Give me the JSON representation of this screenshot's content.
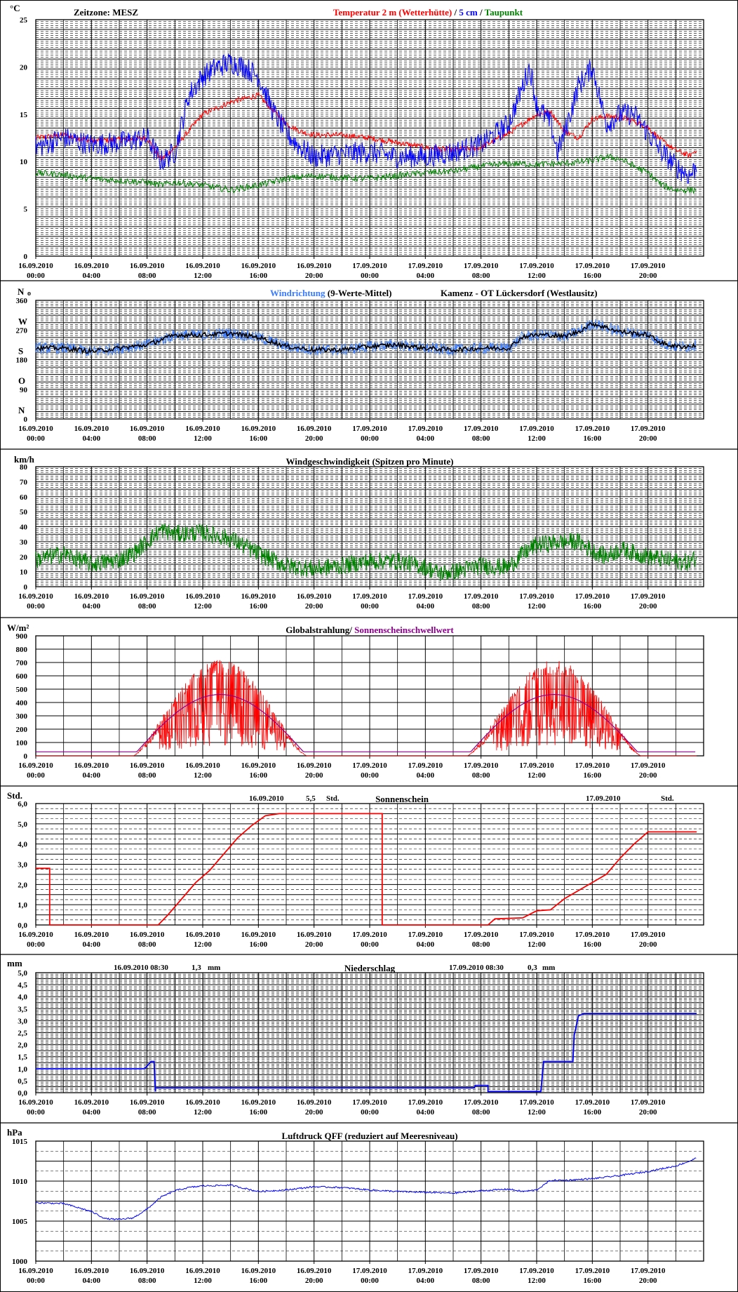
{
  "colors": {
    "red": "#ff0000",
    "blue": "#0000ff",
    "green": "#008000",
    "lightblue": "#3a7bff",
    "purple": "#8b008b",
    "black": "#000000"
  },
  "time_axis": {
    "dates": [
      "16.09.2010",
      "16.09.2010",
      "16.09.2010",
      "16.09.2010",
      "16.09.2010",
      "16.09.2010",
      "17.09.2010",
      "17.09.2010",
      "17.09.2010",
      "17.09.2010",
      "17.09.2010",
      "17.09.2010"
    ],
    "times": [
      "00:00",
      "04:00",
      "08:00",
      "12:00",
      "16:00",
      "20:00",
      "00:00",
      "04:00",
      "08:00",
      "12:00",
      "16:00",
      "20:00"
    ],
    "range_hours": [
      0,
      48
    ]
  },
  "chart_data": [
    {
      "id": "temp",
      "type": "line",
      "title_parts": [
        "Temperatur 2 m (Wetterhütte)",
        "  /  ",
        "5 cm",
        " / ",
        "Taupunkt"
      ],
      "title_colors": [
        "red",
        "black",
        "blue",
        "black",
        "green"
      ],
      "top_left_label": "Zeitzone: MESZ",
      "unit": "°C",
      "ylim": [
        0,
        25
      ],
      "yticks": [
        "0",
        "5",
        "10",
        "15",
        "20",
        "25"
      ],
      "series": [
        {
          "name": "Temperatur 2 m (Wetterhütte)",
          "color": "red",
          "noise": 0.3,
          "x": [
            0,
            2,
            4,
            6,
            8,
            9,
            10,
            12,
            14,
            16,
            17,
            18,
            19,
            20,
            22,
            24,
            26,
            28,
            30,
            32,
            34,
            36,
            37,
            38,
            39,
            40,
            41,
            42,
            43,
            44,
            45,
            46,
            47,
            47.5
          ],
          "y": [
            12.5,
            12.8,
            12.2,
            12.3,
            12.5,
            10.2,
            11.5,
            15,
            16.3,
            17,
            15.5,
            14,
            13.2,
            12.8,
            12.8,
            12.5,
            12,
            11.5,
            11.2,
            11.5,
            13,
            15,
            15.3,
            13.2,
            12.5,
            14.5,
            14.8,
            14.7,
            14.3,
            13.6,
            12.2,
            11.2,
            10.6,
            11.3
          ]
        },
        {
          "name": "5 cm",
          "color": "blue",
          "noise": 1.2,
          "x": [
            0,
            2,
            4,
            6,
            8,
            9,
            10,
            11,
            12,
            13,
            14,
            15,
            16,
            17,
            18,
            19,
            20,
            22,
            24,
            26,
            28,
            30,
            32,
            34,
            35,
            35.5,
            36,
            37,
            37.5,
            38,
            39,
            40,
            41,
            42,
            43,
            44,
            45,
            46,
            47,
            47.5
          ],
          "y": [
            11.5,
            12.5,
            11.8,
            12,
            12.5,
            10,
            11,
            17,
            19,
            20,
            20.5,
            20,
            19,
            15.5,
            13,
            11.5,
            10.5,
            10.8,
            11,
            10.5,
            10.5,
            11,
            11.8,
            14,
            18,
            20,
            16,
            14,
            11,
            13,
            18,
            20,
            14,
            15,
            15,
            13,
            11,
            9.5,
            8.5,
            9.5
          ]
        },
        {
          "name": "Taupunkt",
          "color": "green",
          "noise": 0.35,
          "x": [
            0,
            2,
            4,
            6,
            8,
            9,
            10,
            12,
            14,
            16,
            18,
            20,
            22,
            24,
            26,
            28,
            30,
            32,
            34,
            36,
            38,
            40,
            41,
            42,
            43,
            44,
            45,
            46,
            47,
            47.5
          ],
          "y": [
            8.8,
            8.6,
            8.2,
            8,
            7.8,
            7.5,
            7.8,
            7.5,
            7,
            7.5,
            8.2,
            8.5,
            8.3,
            8.2,
            8.5,
            8.8,
            9,
            9.5,
            9.8,
            9.7,
            9.8,
            10.1,
            10.5,
            10.3,
            9.5,
            8.8,
            7.5,
            7,
            7,
            7
          ]
        }
      ]
    },
    {
      "id": "winddir",
      "type": "line",
      "title_parts": [
        "Windrichtung",
        " (9-Werte-Mittel)"
      ],
      "title_colors": [
        "lightblue",
        "black"
      ],
      "subtitle": "Kamenz - OT Lückersdorf (Westlausitz)",
      "left_label": "N",
      "ylim": [
        0,
        360
      ],
      "yticks": [
        "0",
        "90",
        "180",
        "270",
        "360"
      ],
      "compass": [
        "N",
        "O",
        "S",
        "W",
        "N"
      ],
      "series": [
        {
          "name": "Windrichtung",
          "color": "lightblue",
          "noise": 18,
          "x": [
            0,
            2,
            4,
            6,
            8,
            10,
            12,
            14,
            16,
            18,
            20,
            22,
            24,
            26,
            28,
            30,
            32,
            34,
            35,
            36,
            37,
            38,
            39,
            40,
            42,
            44,
            45,
            46,
            47,
            47.5
          ],
          "y": [
            215,
            215,
            205,
            215,
            225,
            255,
            255,
            260,
            248,
            220,
            210,
            210,
            220,
            225,
            215,
            210,
            215,
            215,
            250,
            255,
            255,
            250,
            265,
            290,
            265,
            255,
            230,
            220,
            220,
            225
          ]
        },
        {
          "name": "9-Werte-Mittel",
          "color": "black",
          "noise": 7,
          "x": [
            0,
            2,
            4,
            6,
            8,
            10,
            12,
            14,
            16,
            18,
            20,
            22,
            24,
            26,
            28,
            30,
            32,
            34,
            35,
            36,
            37,
            38,
            39,
            40,
            42,
            44,
            45,
            46,
            47,
            47.5
          ],
          "y": [
            215,
            215,
            205,
            215,
            225,
            255,
            255,
            260,
            248,
            220,
            210,
            210,
            220,
            225,
            215,
            210,
            215,
            215,
            250,
            255,
            255,
            250,
            265,
            290,
            265,
            255,
            230,
            220,
            220,
            225
          ]
        }
      ]
    },
    {
      "id": "windspeed",
      "type": "line",
      "title_parts": [
        "Windgeschwindigkeit (Spitzen pro Minute)"
      ],
      "title_colors": [
        "black"
      ],
      "unit": "km/h",
      "ylim": [
        0,
        80
      ],
      "yticks": [
        "0",
        "10",
        "20",
        "30",
        "40",
        "50",
        "60",
        "70",
        "80"
      ],
      "series": [
        {
          "name": "Windgeschwindigkeit",
          "color": "green",
          "noise": 6,
          "x": [
            0,
            2,
            4,
            6,
            7,
            8,
            9,
            10,
            12,
            14,
            16,
            18,
            20,
            22,
            24,
            26,
            28,
            29,
            30,
            32,
            34,
            35,
            36,
            38,
            39,
            40,
            41,
            42,
            44,
            46,
            47,
            47.5
          ],
          "y": [
            18,
            22,
            15,
            18,
            22,
            30,
            38,
            35,
            36,
            32,
            22,
            14,
            12,
            14,
            17,
            17,
            13,
            9,
            10,
            14,
            13,
            22,
            28,
            30,
            30,
            24,
            20,
            25,
            20,
            17,
            16,
            20
          ]
        }
      ]
    },
    {
      "id": "radiation",
      "type": "line",
      "title_parts": [
        "Globalstrahlung/",
        " Sonnenscheinschwellwert"
      ],
      "title_colors": [
        "black",
        "purple"
      ],
      "unit": "W/m²",
      "ylim": [
        0,
        900
      ],
      "yticks": [
        "0",
        "100",
        "200",
        "300",
        "400",
        "500",
        "600",
        "700",
        "800",
        "900"
      ],
      "series": [
        {
          "name": "Globalstrahlung",
          "color": "red"
        },
        {
          "name": "Sonnenscheinschwellwert",
          "color": "purple",
          "peak": 460,
          "base": 30,
          "days": [
            [
              7.0,
              19.5
            ],
            [
              31.0,
              43.5
            ]
          ]
        }
      ]
    },
    {
      "id": "sunshine",
      "type": "line",
      "title_parts": [
        "Sonnenschein"
      ],
      "title_colors": [
        "black"
      ],
      "unit": "Std.",
      "ylim": [
        0,
        6
      ],
      "yticks": [
        "0,0",
        "1,0",
        "2,0",
        "3,0",
        "4,0",
        "5,0",
        "6,0"
      ],
      "annotations": [
        {
          "date": "16.09.2010",
          "value": "5,5",
          "unit": "Std."
        },
        {
          "date": "17.09.2010",
          "value": "",
          "unit": "Std."
        }
      ],
      "series": [
        {
          "name": "Sonnenschein",
          "color": "red",
          "x": [
            0,
            1.0,
            1.0,
            8.8,
            9.5,
            10.5,
            11.5,
            12.5,
            13.5,
            14.5,
            15.5,
            16.5,
            17.5,
            24.9,
            24.9,
            32.5,
            33.0,
            35.0,
            36.0,
            37.0,
            38.0,
            39.0,
            40.0,
            41.0,
            42.0,
            43.0,
            44.0,
            47.5
          ],
          "y": [
            2.8,
            2.8,
            0,
            0,
            0.5,
            1.3,
            2.1,
            2.7,
            3.5,
            4.3,
            4.9,
            5.4,
            5.5,
            5.5,
            0,
            0,
            0.3,
            0.35,
            0.7,
            0.75,
            1.3,
            1.7,
            2.1,
            2.5,
            3.3,
            4.0,
            4.6,
            4.6
          ]
        }
      ]
    },
    {
      "id": "precip",
      "type": "line",
      "title_parts": [
        "Niederschlag"
      ],
      "title_colors": [
        "black"
      ],
      "unit": "mm",
      "ylim": [
        0,
        5
      ],
      "yticks": [
        "0,0",
        "0,5",
        "1,0",
        "1,5",
        "2,0",
        "2,5",
        "3,0",
        "3,5",
        "4,0",
        "4,5",
        "5,0"
      ],
      "annotations": [
        {
          "label": "16.09.2010 08:30",
          "value": "1,3",
          "unit": "mm"
        },
        {
          "label": "17.09.2010 08:30",
          "value": "0,3",
          "unit": "mm"
        }
      ],
      "series": [
        {
          "name": "Niederschlag",
          "color": "blue",
          "x": [
            0,
            7.8,
            7.9,
            8.3,
            8.5,
            8.6,
            8.6,
            31.5,
            31.6,
            32.5,
            32.5,
            36.3,
            36.5,
            38.6,
            38.7,
            39.0,
            39.4,
            47.5
          ],
          "y": [
            1.0,
            1.0,
            1.05,
            1.3,
            1.3,
            0.05,
            0.2,
            0.2,
            0.3,
            0.3,
            0.05,
            0.05,
            1.3,
            1.3,
            2.4,
            3.2,
            3.3,
            3.3
          ]
        }
      ]
    },
    {
      "id": "pressure",
      "type": "line",
      "title_parts": [
        "Luftdruck QFF (reduziert auf Meeresniveau)"
      ],
      "title_colors": [
        "black"
      ],
      "unit": "hPa",
      "ylim": [
        1000,
        1015
      ],
      "yticks": [
        "1000",
        "1005",
        "1010",
        "1015"
      ],
      "series": [
        {
          "name": "Luftdruck",
          "color": "blue",
          "noise": 0.1,
          "x": [
            0,
            2,
            4,
            5,
            6,
            7,
            8,
            9,
            10,
            11,
            12,
            14,
            16,
            18,
            20,
            22,
            24,
            26,
            28,
            30,
            32,
            34,
            35,
            36,
            37,
            38,
            40,
            42,
            44,
            46,
            47,
            47.5
          ],
          "y": [
            1007.3,
            1007.2,
            1006.2,
            1005.3,
            1005.2,
            1005.4,
            1006.5,
            1008,
            1008.8,
            1009.2,
            1009.4,
            1009.5,
            1008.7,
            1008.9,
            1009.3,
            1009.2,
            1008.9,
            1008.7,
            1008.6,
            1008.5,
            1008.8,
            1009,
            1008.7,
            1008.9,
            1010.1,
            1010.1,
            1010.3,
            1010.7,
            1011.2,
            1011.9,
            1012.5,
            1012.9
          ]
        }
      ]
    }
  ]
}
